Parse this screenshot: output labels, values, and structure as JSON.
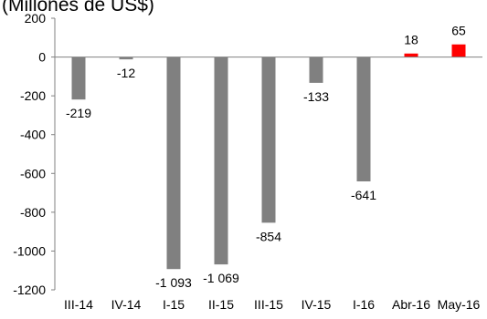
{
  "chart_data": {
    "type": "bar",
    "unit_label": "(Millones de US$)",
    "categories": [
      "III-14",
      "IV-14",
      "I-15",
      "II-15",
      "III-15",
      "IV-15",
      "I-16",
      "Abr-16",
      "May-16"
    ],
    "values": [
      -219,
      -12,
      -1093,
      -1069,
      -854,
      -133,
      -641,
      18,
      65
    ],
    "value_labels": [
      "-219",
      "-12",
      "-1 093",
      "-1 069",
      "-854",
      "-133",
      "-641",
      "18",
      "65"
    ],
    "bar_colors": [
      "#808080",
      "#808080",
      "#808080",
      "#808080",
      "#808080",
      "#808080",
      "#808080",
      "#ff0000",
      "#ff0000"
    ],
    "ylim": [
      -1200,
      200
    ],
    "yticks": [
      200,
      0,
      -200,
      -400,
      -600,
      -800,
      -1000,
      -1200
    ],
    "ytick_labels": [
      "200",
      "0",
      "-200",
      "-400",
      "-600",
      "-800",
      "-1000",
      "-1200"
    ],
    "xlabel": "",
    "ylabel": "",
    "grid": false,
    "legend": "none"
  }
}
